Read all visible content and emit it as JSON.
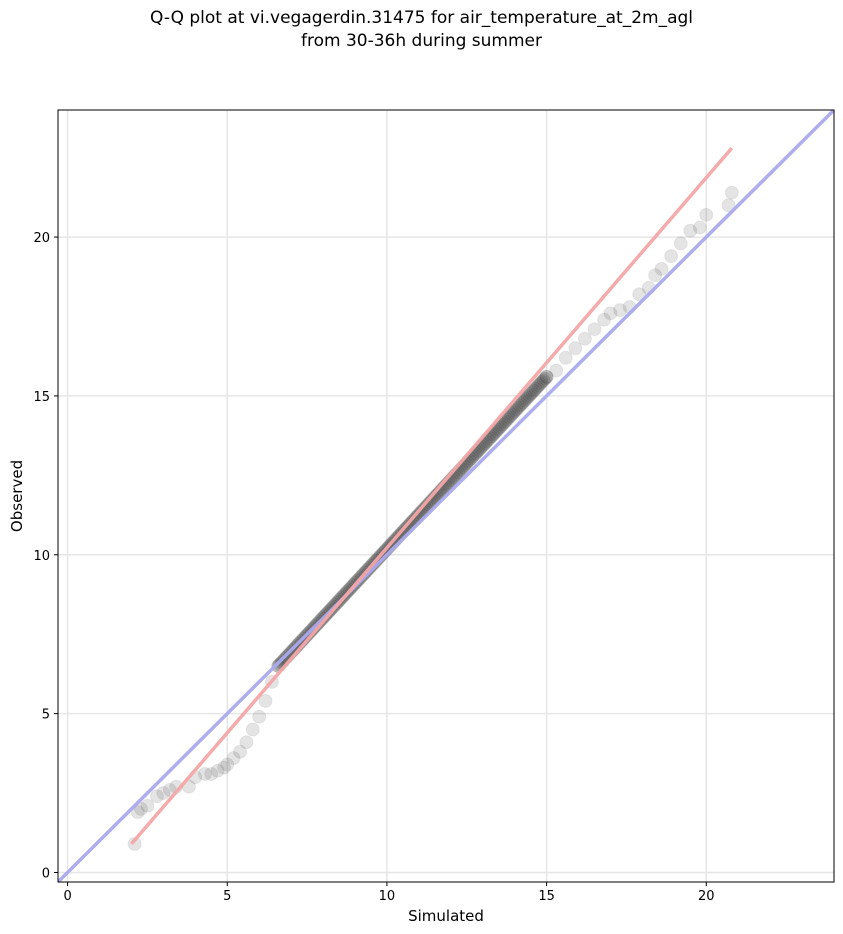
{
  "chart_data": {
    "type": "scatter",
    "title_lines": [
      "Q-Q plot at vi.vegagerdin.31475 for air_temperature_at_2m_agl",
      "from 30-36h during summer"
    ],
    "xlabel": "Simulated",
    "ylabel": "Observed",
    "xlim": [
      -0.3,
      24.0
    ],
    "ylim": [
      -0.3,
      24.0
    ],
    "xticks": [
      0,
      5,
      10,
      15,
      20
    ],
    "yticks": [
      0,
      5,
      10,
      15,
      20
    ],
    "grid": true,
    "identity_line": {
      "x": [
        -0.3,
        24.0
      ],
      "y": [
        -0.3,
        24.0
      ],
      "color": "#aaaaee"
    },
    "fit_line": {
      "x": [
        2.0,
        20.8
      ],
      "y": [
        0.9,
        22.8
      ],
      "color": "#f4a6a6"
    },
    "points_color": "#404040",
    "tail_points": [
      [
        2.1,
        0.9
      ],
      [
        2.2,
        1.9
      ],
      [
        2.3,
        2.0
      ],
      [
        2.5,
        2.1
      ],
      [
        2.8,
        2.4
      ],
      [
        3.0,
        2.5
      ],
      [
        3.2,
        2.6
      ],
      [
        3.4,
        2.7
      ],
      [
        3.8,
        2.7
      ],
      [
        4.0,
        3.0
      ],
      [
        4.3,
        3.1
      ],
      [
        4.5,
        3.1
      ],
      [
        4.7,
        3.2
      ],
      [
        4.9,
        3.3
      ],
      [
        5.0,
        3.4
      ],
      [
        5.2,
        3.6
      ],
      [
        5.4,
        3.8
      ],
      [
        5.6,
        4.1
      ],
      [
        5.8,
        4.5
      ],
      [
        6.0,
        4.9
      ],
      [
        6.2,
        5.4
      ],
      [
        6.4,
        6.0
      ],
      [
        6.6,
        6.5
      ],
      [
        15.0,
        15.6
      ],
      [
        15.3,
        15.8
      ],
      [
        15.6,
        16.2
      ],
      [
        15.9,
        16.5
      ],
      [
        16.2,
        16.8
      ],
      [
        16.5,
        17.1
      ],
      [
        16.8,
        17.4
      ],
      [
        17.0,
        17.6
      ],
      [
        17.3,
        17.7
      ],
      [
        17.6,
        17.8
      ],
      [
        17.9,
        18.2
      ],
      [
        18.2,
        18.4
      ],
      [
        18.4,
        18.8
      ],
      [
        18.6,
        19.0
      ],
      [
        18.9,
        19.4
      ],
      [
        19.2,
        19.8
      ],
      [
        19.5,
        20.2
      ],
      [
        19.8,
        20.3
      ],
      [
        20.0,
        20.7
      ],
      [
        20.7,
        21.0
      ],
      [
        20.8,
        21.4
      ]
    ],
    "dense_segment": {
      "x": [
        6.6,
        15.0
      ],
      "y": [
        6.5,
        15.6
      ]
    }
  }
}
